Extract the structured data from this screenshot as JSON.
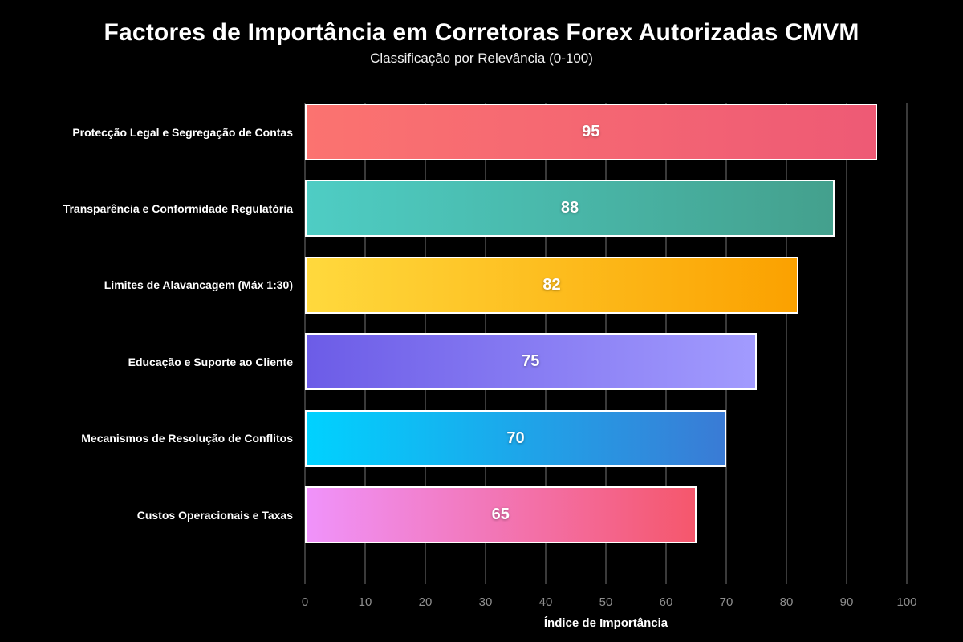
{
  "chart_data": {
    "type": "bar",
    "orientation": "horizontal",
    "title": "Factores de Importância em Corretoras Forex Autorizadas CMVM",
    "subtitle": "Classificação por Relevância (0-100)",
    "xlabel": "Índice de Importância",
    "categories": [
      "Protecção Legal e Segregação de Contas",
      "Transparência e Conformidade Regulatória",
      "Limites de Alavancagem (Máx 1:30)",
      "Educação e Suporte ao Cliente",
      "Mecanismos de Resolução de Conflitos",
      "Custos Operacionais e Taxas"
    ],
    "values": [
      95,
      88,
      82,
      75,
      70,
      65
    ],
    "bar_gradients": [
      [
        "#fb7370",
        "#ee5a75"
      ],
      [
        "#4ecdc4",
        "#44a08d"
      ],
      [
        "#ffd93d",
        "#fba100"
      ],
      [
        "#6c5ce7",
        "#a29bfe"
      ],
      [
        "#00d2ff",
        "#3a7bd5"
      ],
      [
        "#f093fb",
        "#f5576c"
      ]
    ],
    "xlim": [
      0,
      100
    ],
    "x_ticks": [
      0,
      10,
      20,
      30,
      40,
      50,
      60,
      70,
      80,
      90,
      100
    ],
    "grid": "vertical",
    "colors": {
      "background": "#000000",
      "bar_border": "#ffffff",
      "gridline": "#3a3a3a",
      "tick_label": "#8e8e8e",
      "title_text": "#ffffff",
      "value_label": "#ffffff"
    },
    "value_label_position": "inside-center",
    "legend": "none"
  }
}
